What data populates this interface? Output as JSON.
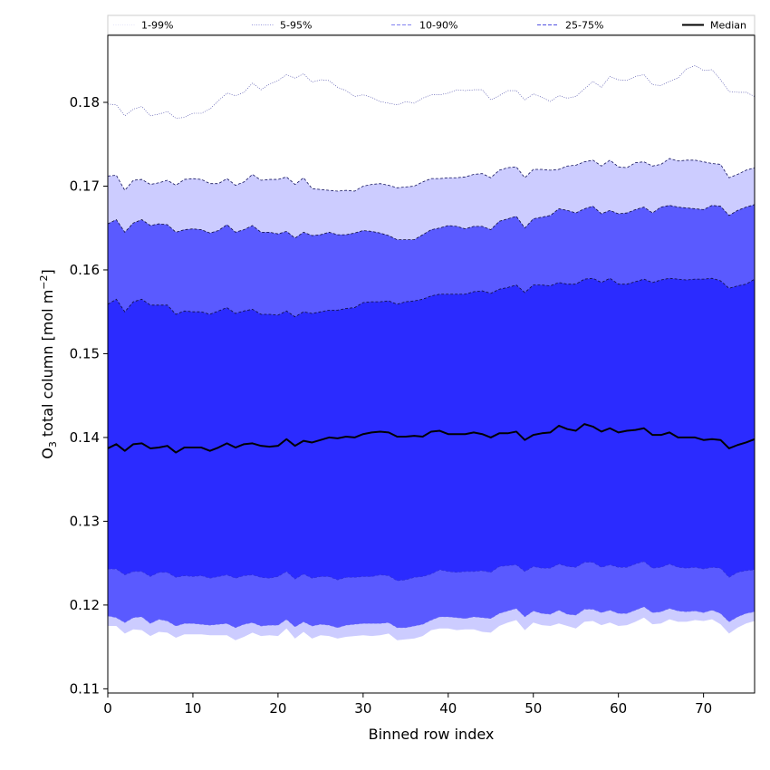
{
  "chart_data": {
    "type": "area",
    "xlabel": "Binned row index",
    "ylabel_prefix": "O",
    "ylabel_sub": "3",
    "ylabel_main": " total column [mol m",
    "ylabel_sup": "−2",
    "ylabel_end": "]",
    "xlim": [
      0,
      76
    ],
    "ylim": [
      0.1095,
      0.188
    ],
    "x_ticks": [
      0,
      10,
      20,
      30,
      40,
      50,
      60,
      70
    ],
    "x_tick_labels": [
      "0",
      "10",
      "20",
      "30",
      "40",
      "50",
      "60",
      "70"
    ],
    "y_ticks": [
      0.11,
      0.12,
      0.13,
      0.14,
      0.15,
      0.16,
      0.17,
      0.18
    ],
    "y_tick_labels": [
      "0.11",
      "0.12",
      "0.13",
      "0.14",
      "0.15",
      "0.16",
      "0.17",
      "0.18"
    ],
    "grid": false,
    "legend_position": "top, above plot",
    "legend": [
      {
        "label": "1-99%",
        "color": "#e6e6f8",
        "style": "dotted"
      },
      {
        "label": "5-95%",
        "color": "#9999dd",
        "style": "dotted"
      },
      {
        "label": "10-90%",
        "color": "#8080f0",
        "style": "dashed"
      },
      {
        "label": "25-75%",
        "color": "#5050e0",
        "style": "dashed"
      },
      {
        "label": "Median",
        "color": "#000000",
        "style": "solid"
      }
    ],
    "band_colors": {
      "p1_99": "#ffffff",
      "p5_95": "#ccccff",
      "p10_90": "#9494ff",
      "outer_10_25": "#5a5aff",
      "p25_75": "#2b2bff"
    },
    "median_color": "#000000",
    "x": [
      0,
      1,
      2,
      3,
      4,
      5,
      6,
      7,
      8,
      9,
      10,
      11,
      12,
      13,
      14,
      15,
      16,
      17,
      18,
      19,
      20,
      21,
      22,
      23,
      24,
      25,
      26,
      27,
      28,
      29,
      30,
      31,
      32,
      33,
      34,
      35,
      36,
      37,
      38,
      39,
      40,
      41,
      42,
      43,
      44,
      45,
      46,
      47,
      48,
      49,
      50,
      51,
      52,
      53,
      54,
      55,
      56,
      57,
      58,
      59,
      60,
      61,
      62,
      63,
      64,
      65,
      66,
      67,
      68,
      69,
      70,
      71,
      72,
      73,
      74,
      75,
      76
    ],
    "series": [
      {
        "name": "Median",
        "values": [
          0.1387,
          0.1392,
          0.1384,
          0.1392,
          0.1393,
          0.1387,
          0.1388,
          0.139,
          0.1382,
          0.1388,
          0.1388,
          0.1388,
          0.1384,
          0.1388,
          0.1393,
          0.1388,
          0.1392,
          0.1393,
          0.139,
          0.1389,
          0.139,
          0.1398,
          0.139,
          0.1396,
          0.1394,
          0.1397,
          0.14,
          0.1399,
          0.1401,
          0.14,
          0.1404,
          0.1406,
          0.1407,
          0.1406,
          0.1401,
          0.1401,
          0.1402,
          0.1401,
          0.1407,
          0.1408,
          0.1404,
          0.1404,
          0.1404,
          0.1406,
          0.1404,
          0.14,
          0.1405,
          0.1405,
          0.1407,
          0.1397,
          0.1403,
          0.1405,
          0.1406,
          0.1414,
          0.141,
          0.1408,
          0.1416,
          0.1413,
          0.1407,
          0.1411,
          0.1406,
          0.1408,
          0.1409,
          0.1411,
          0.1403,
          0.1403,
          0.1406,
          0.14,
          0.14,
          0.14,
          0.1397,
          0.1398,
          0.1397,
          0.1387,
          0.1391,
          0.1394,
          0.1398
        ]
      },
      {
        "name": "25%",
        "values": [
          0.1243,
          0.1243,
          0.1236,
          0.124,
          0.124,
          0.1234,
          0.1239,
          0.1239,
          0.1233,
          0.1235,
          0.1234,
          0.1235,
          0.1232,
          0.1234,
          0.1236,
          0.1232,
          0.1235,
          0.1236,
          0.1233,
          0.1232,
          0.1234,
          0.124,
          0.1231,
          0.1237,
          0.1232,
          0.1234,
          0.1234,
          0.123,
          0.1233,
          0.1233,
          0.1234,
          0.1234,
          0.1236,
          0.1235,
          0.1229,
          0.123,
          0.1233,
          0.1234,
          0.1237,
          0.1242,
          0.124,
          0.1239,
          0.124,
          0.124,
          0.1241,
          0.1239,
          0.1246,
          0.1247,
          0.1248,
          0.124,
          0.1246,
          0.1244,
          0.1244,
          0.1249,
          0.1246,
          0.1245,
          0.1251,
          0.1251,
          0.1245,
          0.1248,
          0.1245,
          0.1245,
          0.1249,
          0.1252,
          0.1244,
          0.1245,
          0.1249,
          0.1245,
          0.1244,
          0.1245,
          0.1243,
          0.1245,
          0.1244,
          0.1233,
          0.1239,
          0.1241,
          0.1242
        ]
      },
      {
        "name": "75%",
        "values": [
          0.1559,
          0.1565,
          0.155,
          0.1562,
          0.1565,
          0.1558,
          0.1558,
          0.1558,
          0.1547,
          0.1551,
          0.155,
          0.155,
          0.1547,
          0.1551,
          0.1555,
          0.1548,
          0.1551,
          0.1553,
          0.1547,
          0.1547,
          0.1546,
          0.1551,
          0.1544,
          0.155,
          0.1548,
          0.155,
          0.1552,
          0.1552,
          0.1554,
          0.1555,
          0.1561,
          0.1562,
          0.1562,
          0.1563,
          0.1559,
          0.1562,
          0.1563,
          0.1565,
          0.1569,
          0.1571,
          0.1571,
          0.1571,
          0.1571,
          0.1574,
          0.1575,
          0.1572,
          0.1577,
          0.1579,
          0.1582,
          0.1573,
          0.1582,
          0.1582,
          0.1581,
          0.1585,
          0.1583,
          0.1583,
          0.1589,
          0.159,
          0.1585,
          0.159,
          0.1583,
          0.1583,
          0.1586,
          0.1589,
          0.1585,
          0.1588,
          0.159,
          0.1589,
          0.1588,
          0.1589,
          0.1589,
          0.159,
          0.1587,
          0.1578,
          0.1581,
          0.1583,
          0.1589
        ]
      },
      {
        "name": "10%",
        "values": [
          0.1187,
          0.1185,
          0.1179,
          0.1185,
          0.1186,
          0.1178,
          0.1183,
          0.1181,
          0.1175,
          0.1178,
          0.1178,
          0.1177,
          0.1176,
          0.1177,
          0.1178,
          0.1173,
          0.1177,
          0.1179,
          0.1175,
          0.1176,
          0.1176,
          0.1183,
          0.1174,
          0.118,
          0.1175,
          0.1177,
          0.1176,
          0.1173,
          0.1176,
          0.1177,
          0.1178,
          0.1178,
          0.1178,
          0.1179,
          0.1173,
          0.1173,
          0.1175,
          0.1177,
          0.1182,
          0.1186,
          0.1186,
          0.1185,
          0.1184,
          0.1186,
          0.1185,
          0.1184,
          0.119,
          0.1193,
          0.1196,
          0.1186,
          0.1193,
          0.119,
          0.1189,
          0.1194,
          0.1189,
          0.1188,
          0.1195,
          0.1195,
          0.1191,
          0.1194,
          0.119,
          0.119,
          0.1194,
          0.1198,
          0.1191,
          0.1192,
          0.1196,
          0.1193,
          0.1192,
          0.1193,
          0.1191,
          0.1194,
          0.119,
          0.118,
          0.1186,
          0.119,
          0.1192
        ]
      },
      {
        "name": "90%",
        "values": [
          0.1655,
          0.166,
          0.1645,
          0.1656,
          0.166,
          0.1653,
          0.1655,
          0.1654,
          0.1645,
          0.1648,
          0.1649,
          0.1648,
          0.1644,
          0.1647,
          0.1654,
          0.1645,
          0.1648,
          0.1653,
          0.1645,
          0.1645,
          0.1643,
          0.1646,
          0.1638,
          0.1645,
          0.1641,
          0.1642,
          0.1645,
          0.1642,
          0.1642,
          0.1644,
          0.1647,
          0.1646,
          0.1644,
          0.1641,
          0.1636,
          0.1636,
          0.1636,
          0.1642,
          0.1648,
          0.165,
          0.1653,
          0.1652,
          0.1649,
          0.1652,
          0.1652,
          0.1648,
          0.1658,
          0.1661,
          0.1664,
          0.165,
          0.1661,
          0.1663,
          0.1665,
          0.1673,
          0.1671,
          0.1668,
          0.1673,
          0.1676,
          0.1667,
          0.1671,
          0.1667,
          0.1668,
          0.1672,
          0.1675,
          0.1668,
          0.1675,
          0.1677,
          0.1675,
          0.1674,
          0.1673,
          0.1672,
          0.1677,
          0.1676,
          0.1665,
          0.1671,
          0.1675,
          0.1678
        ]
      },
      {
        "name": "5%",
        "values": [
          0.1175,
          0.1175,
          0.1166,
          0.1171,
          0.117,
          0.1163,
          0.1168,
          0.1167,
          0.1161,
          0.1165,
          0.1165,
          0.1165,
          0.1164,
          0.1164,
          0.1164,
          0.1158,
          0.1162,
          0.1167,
          0.1163,
          0.1164,
          0.1163,
          0.1172,
          0.116,
          0.1168,
          0.116,
          0.1164,
          0.1163,
          0.116,
          0.1162,
          0.1163,
          0.1164,
          0.1163,
          0.1164,
          0.1166,
          0.1158,
          0.1159,
          0.116,
          0.1163,
          0.117,
          0.1172,
          0.1172,
          0.117,
          0.1171,
          0.1171,
          0.1168,
          0.1167,
          0.1175,
          0.1179,
          0.1182,
          0.117,
          0.1179,
          0.1176,
          0.1175,
          0.1178,
          0.1175,
          0.1172,
          0.118,
          0.1181,
          0.1176,
          0.1179,
          0.1175,
          0.1176,
          0.118,
          0.1185,
          0.1177,
          0.1178,
          0.1183,
          0.118,
          0.118,
          0.1182,
          0.1181,
          0.1183,
          0.1177,
          0.1166,
          0.1173,
          0.1178,
          0.1181
        ]
      },
      {
        "name": "95%",
        "values": [
          0.1712,
          0.1713,
          0.1695,
          0.1707,
          0.1708,
          0.1702,
          0.1704,
          0.1707,
          0.1701,
          0.1708,
          0.1709,
          0.1708,
          0.1703,
          0.1703,
          0.1709,
          0.1701,
          0.1705,
          0.1714,
          0.1707,
          0.1708,
          0.1708,
          0.1711,
          0.1702,
          0.171,
          0.1697,
          0.1696,
          0.1695,
          0.1694,
          0.1695,
          0.1694,
          0.17,
          0.1702,
          0.1703,
          0.1701,
          0.1698,
          0.1699,
          0.17,
          0.1705,
          0.1709,
          0.1709,
          0.171,
          0.171,
          0.1711,
          0.1714,
          0.1715,
          0.171,
          0.1719,
          0.1722,
          0.1723,
          0.171,
          0.172,
          0.172,
          0.1719,
          0.172,
          0.1724,
          0.1725,
          0.1729,
          0.1731,
          0.1724,
          0.1731,
          0.1723,
          0.1722,
          0.1728,
          0.1729,
          0.1724,
          0.1726,
          0.1733,
          0.173,
          0.1731,
          0.1731,
          0.1729,
          0.1727,
          0.1726,
          0.171,
          0.1714,
          0.1719,
          0.1722
        ]
      },
      {
        "name": "1%",
        "values": [
          0.1149,
          0.1148,
          0.1139,
          0.1141,
          0.1141,
          0.1133,
          0.1137,
          0.1137,
          0.1131,
          0.1136,
          0.1136,
          0.1134,
          0.113,
          0.1132,
          0.1134,
          0.1131,
          0.1135,
          0.1141,
          0.1142,
          0.1143,
          0.1145,
          0.115,
          0.1141,
          0.1146,
          0.1141,
          0.1142,
          0.1139,
          0.1137,
          0.114,
          0.1143,
          0.1145,
          0.1144,
          0.1146,
          0.1147,
          0.1141,
          0.1143,
          0.1145,
          0.1147,
          0.1155,
          0.1155,
          0.1155,
          0.1155,
          0.1155,
          0.1157,
          0.1155,
          0.1152,
          0.1159,
          0.1162,
          0.1162,
          0.1151,
          0.1158,
          0.1155,
          0.1154,
          0.1155,
          0.1153,
          0.1151,
          0.1154,
          0.1156,
          0.1151,
          0.1156,
          0.1152,
          0.1153,
          0.1155,
          0.1159,
          0.1153,
          0.1155,
          0.116,
          0.116,
          0.1159,
          0.1161,
          0.1158,
          0.1163,
          0.1161,
          0.1151,
          0.1156,
          0.1161,
          0.1164
        ]
      },
      {
        "name": "99%",
        "values": [
          0.1798,
          0.1797,
          0.1784,
          0.1792,
          0.1795,
          0.1784,
          0.1786,
          0.1789,
          0.1781,
          0.1782,
          0.1787,
          0.1787,
          0.1792,
          0.1802,
          0.1811,
          0.1808,
          0.1812,
          0.1823,
          0.1815,
          0.1822,
          0.1826,
          0.1833,
          0.1829,
          0.1834,
          0.1824,
          0.1827,
          0.1826,
          0.1818,
          0.1814,
          0.1807,
          0.1809,
          0.1806,
          0.1801,
          0.1799,
          0.1797,
          0.1801,
          0.1799,
          0.1805,
          0.1809,
          0.1809,
          0.1811,
          0.1815,
          0.1814,
          0.1815,
          0.1815,
          0.1803,
          0.1808,
          0.1814,
          0.1814,
          0.1803,
          0.181,
          0.1806,
          0.1801,
          0.1808,
          0.1805,
          0.1807,
          0.1816,
          0.1825,
          0.1818,
          0.1831,
          0.1827,
          0.1826,
          0.1831,
          0.1833,
          0.1821,
          0.182,
          0.1825,
          0.1829,
          0.184,
          0.1844,
          0.1838,
          0.1839,
          0.1827,
          0.1813,
          0.1812,
          0.1812,
          0.1807
        ]
      }
    ]
  }
}
